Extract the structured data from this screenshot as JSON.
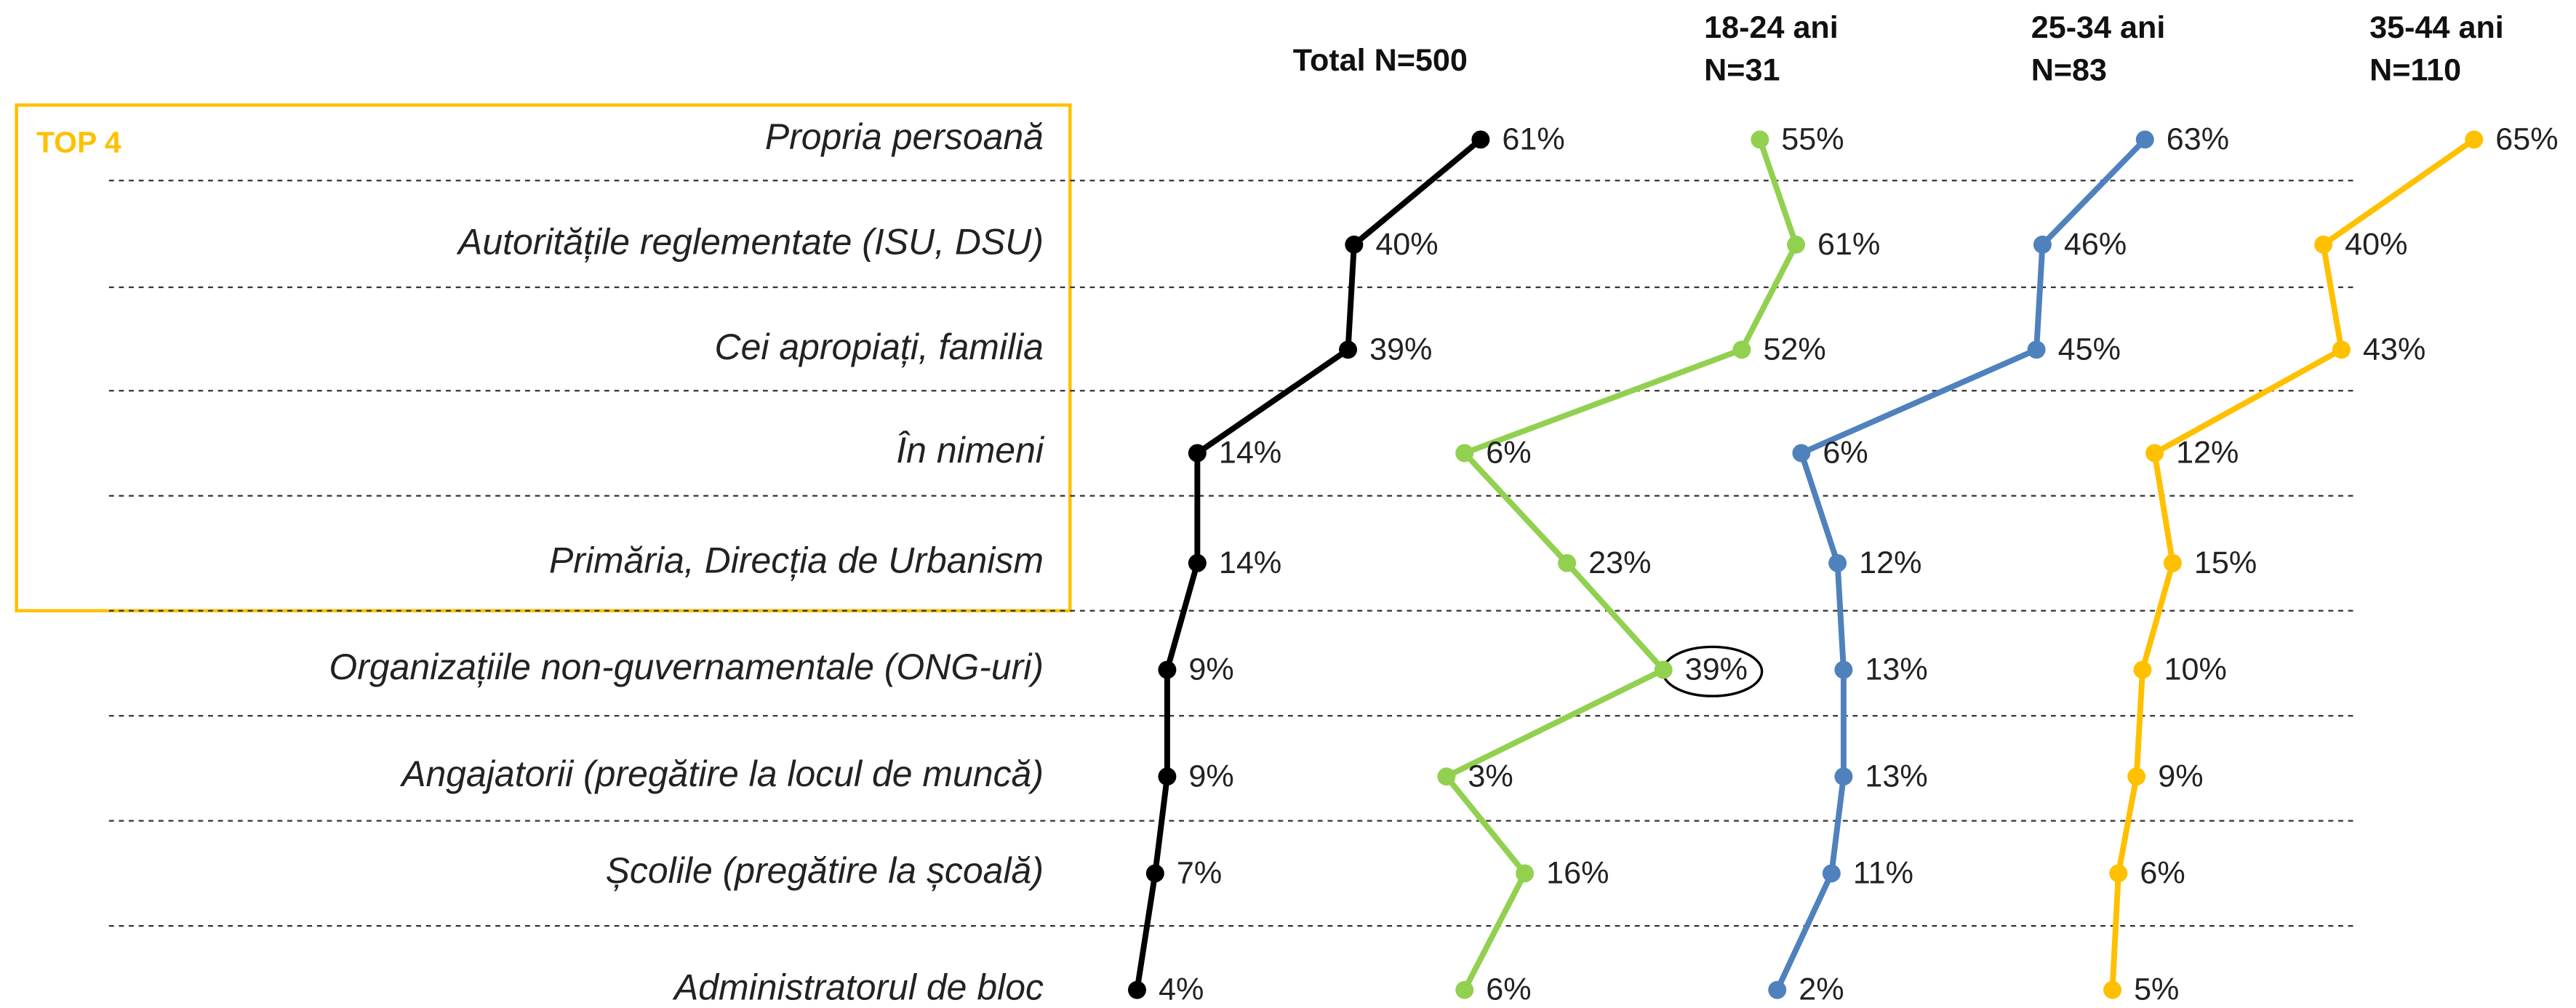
{
  "chart_data": {
    "type": "line",
    "annotation": "TOP 4",
    "categories": [
      "Propria persoană",
      "Autoritățile reglementate (ISU, DSU)",
      "Cei apropiați, familia",
      "În nimeni",
      "Primăria, Direcția de Urbanism",
      "Organizațiile non-guvernamentale (ONG-uri)",
      "Angajatorii (pregătire la locul de muncă)",
      "Școlile (pregătire la școală)",
      "Administratorul de bloc"
    ],
    "series": [
      {
        "name": "Total N=500",
        "color": "#000000",
        "values": [
          61,
          40,
          39,
          14,
          14,
          9,
          9,
          7,
          4
        ],
        "value_labels": [
          "61%",
          "40%",
          "39%",
          "14%",
          "14%",
          "9%",
          "9%",
          "7%",
          "4%"
        ]
      },
      {
        "name": "18-24 ani",
        "sample": "N=31",
        "color": "#92d050",
        "values": [
          55,
          61,
          52,
          6,
          23,
          39,
          3,
          16,
          6
        ],
        "value_labels": [
          "55%",
          "61%",
          "52%",
          "6%",
          "23%",
          "39%",
          "3%",
          "16%",
          "6%"
        ]
      },
      {
        "name": "25-34 ani",
        "sample": "N=83",
        "color": "#4f81bd",
        "values": [
          63,
          46,
          45,
          6,
          12,
          13,
          13,
          11,
          2
        ],
        "value_labels": [
          "63%",
          "46%",
          "45%",
          "6%",
          "12%",
          "13%",
          "13%",
          "11%",
          "2%"
        ]
      },
      {
        "name": "35-44 ani",
        "sample": "N=110",
        "color": "#ffc000",
        "values": [
          65,
          40,
          43,
          12,
          15,
          10,
          9,
          6,
          5
        ],
        "value_labels": [
          "65%",
          "40%",
          "43%",
          "12%",
          "15%",
          "10%",
          "9%",
          "6%",
          "5%"
        ]
      }
    ]
  }
}
